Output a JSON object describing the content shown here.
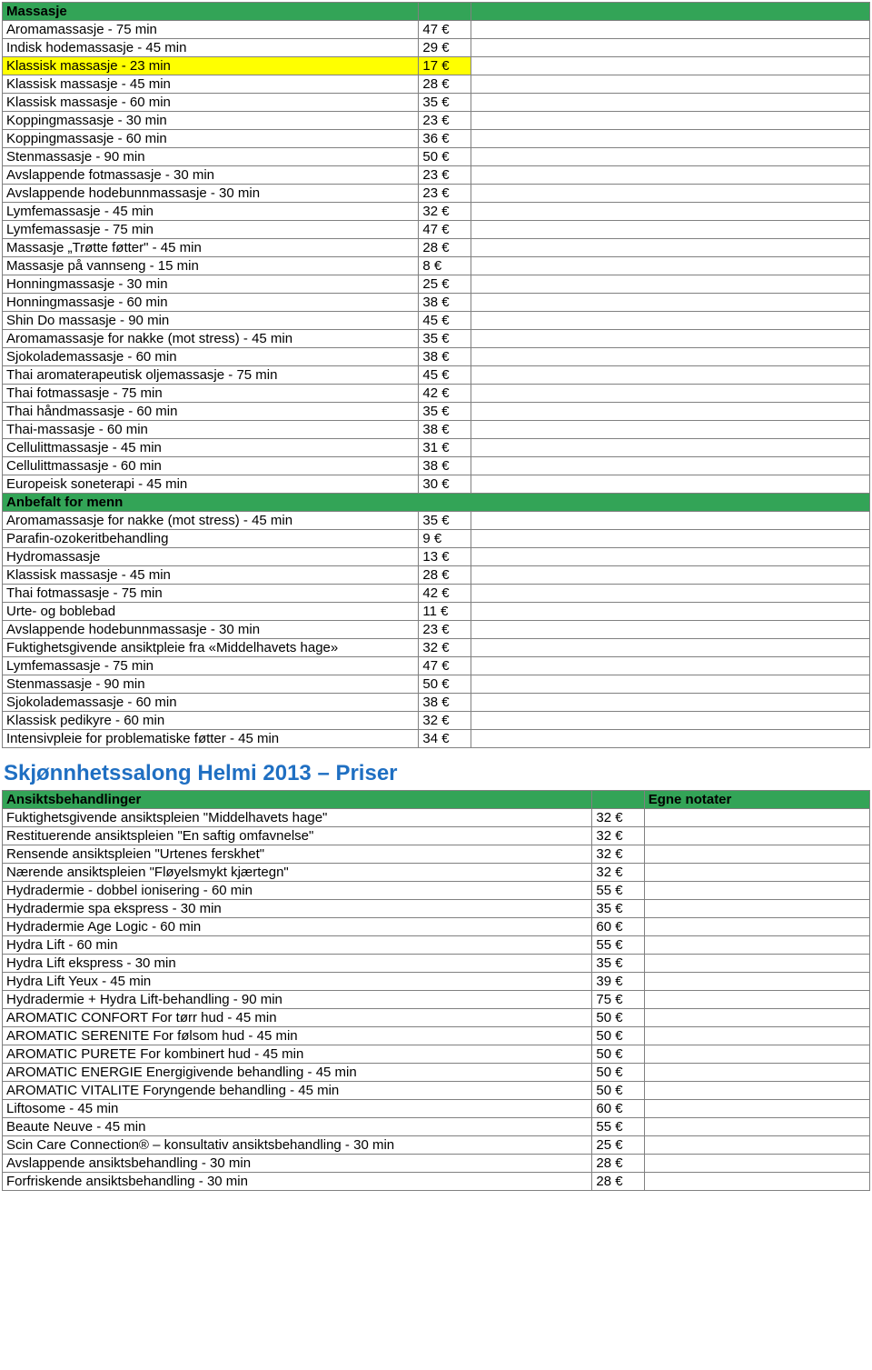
{
  "colors": {
    "headerBg": "#33a457",
    "highlight": "#ffff00",
    "titleColor": "#1f6fc2",
    "borderColor": "#808080"
  },
  "table1": {
    "section1": {
      "header": "Massasje",
      "rows": [
        {
          "name": "Aromamassasje - 75 min",
          "price": "47 €"
        },
        {
          "name": "Indisk hodemassasje - 45 min",
          "price": "29 €"
        },
        {
          "name": "Klassisk massasje - 23 min",
          "price": "17 €",
          "highlight": true
        },
        {
          "name": "Klassisk massasje - 45 min",
          "price": "28 €"
        },
        {
          "name": "Klassisk massasje - 60 min",
          "price": "35 €"
        },
        {
          "name": "Koppingmassasje - 30 min",
          "price": "23 €"
        },
        {
          "name": "Koppingmassasje - 60 min",
          "price": "36 €"
        },
        {
          "name": "Stenmassasje - 90 min",
          "price": "50 €"
        },
        {
          "name": "Avslappende fotmassasje - 30 min",
          "price": "23 €"
        },
        {
          "name": "Avslappende hodebunnmassasje - 30 min",
          "price": "23 €"
        },
        {
          "name": "Lymfemassasje - 45 min",
          "price": "32 €"
        },
        {
          "name": "Lymfemassasje - 75 min",
          "price": "47 €"
        },
        {
          "name": "Massasje „Trøtte føtter\" - 45 min",
          "price": "28 €"
        },
        {
          "name": "Massasje på vannseng - 15 min",
          "price": "8 €"
        },
        {
          "name": "Honningmassasje - 30 min",
          "price": "25 €"
        },
        {
          "name": "Honningmassasje - 60 min",
          "price": "38 €"
        },
        {
          "name": "Shin Do massasje - 90 min",
          "price": "45 €"
        },
        {
          "name": "Aromamassasje for nakke (mot stress) - 45 min",
          "price": "35 €"
        },
        {
          "name": "Sjokolademassasje - 60 min",
          "price": "38 €"
        },
        {
          "name": "Thai aromaterapeutisk oljemassasje - 75 min",
          "price": "45 €"
        },
        {
          "name": "Thai fotmassasje - 75 min",
          "price": "42 €"
        },
        {
          "name": "Thai håndmassasje - 60 min",
          "price": "35 €"
        },
        {
          "name": "Thai-massasje - 60 min",
          "price": "38 €"
        },
        {
          "name": "Cellulittmassasje - 45 min",
          "price": "31 €"
        },
        {
          "name": "Cellulittmassasje - 60 min",
          "price": "38 €"
        },
        {
          "name": "Europeisk soneterapi - 45 min",
          "price": "30 €"
        }
      ]
    },
    "section2": {
      "header": "Anbefalt for menn",
      "rows": [
        {
          "name": "Aromamassasje for nakke (mot stress) - 45 min",
          "price": "35 €"
        },
        {
          "name": "Parafin-ozokeritbehandling",
          "price": "9 €"
        },
        {
          "name": "Hydromassasje",
          "price": "13 €"
        },
        {
          "name": "Klassisk massasje - 45 min",
          "price": "28 €"
        },
        {
          "name": "Thai fotmassasje - 75 min",
          "price": "42 €"
        },
        {
          "name": "Urte- og boblebad",
          "price": "11 €"
        },
        {
          "name": "Avslappende hodebunnmassasje - 30 min",
          "price": "23 €"
        },
        {
          "name": "Fuktighetsgivende ansiktpleie fra «Middelhavets hage»",
          "price": "32 €"
        },
        {
          "name": "Lymfemassasje - 75 min",
          "price": "47 €"
        },
        {
          "name": "Stenmassasje - 90 min",
          "price": "50 €"
        },
        {
          "name": "Sjokolademassasje - 60 min",
          "price": "38 €"
        },
        {
          "name": "Klassisk pedikyre - 60 min",
          "price": "32 €"
        },
        {
          "name": "Intensivpleie for problematiske føtter - 45 min",
          "price": "34 €"
        }
      ]
    }
  },
  "sectionTitle": "Skjønnhetssalong Helmi 2013 – Priser",
  "table2": {
    "headerLeft": "Ansiktsbehandlinger",
    "headerRight": "Egne notater",
    "rows": [
      {
        "name": "Fuktighetsgivende ansiktspleien \"Middelhavets hage\"",
        "price": "32 €"
      },
      {
        "name": "Restituerende ansiktspleien \"En saftig omfavnelse\"",
        "price": "32 €"
      },
      {
        "name": "Rensende ansiktspleien \"Urtenes ferskhet\"",
        "price": "32 €"
      },
      {
        "name": "Nærende ansiktspleien \"Fløyelsmykt kjærtegn\"",
        "price": "32 €"
      },
      {
        "name": "Hydradermie - dobbel ionisering - 60 min",
        "price": "55 €"
      },
      {
        "name": "Hydradermie spa ekspress - 30 min",
        "price": "35 €"
      },
      {
        "name": "Hydradermie Age Logic - 60 min",
        "price": "60 €"
      },
      {
        "name": "Hydra Lift - 60 min",
        "price": "55 €"
      },
      {
        "name": "Hydra Lift ekspress - 30 min",
        "price": "35 €"
      },
      {
        "name": "Hydra Lift Yeux - 45 min",
        "price": "39 €"
      },
      {
        "name": "Hydradermie + Hydra Lift-behandling - 90 min",
        "price": "75 €"
      },
      {
        "name": "AROMATIC CONFORT For tørr hud - 45 min",
        "price": "50 €"
      },
      {
        "name": "AROMATIC SERENITE For følsom hud - 45 min",
        "price": "50 €"
      },
      {
        "name": "AROMATIC PURETE For kombinert hud - 45 min",
        "price": "50 €"
      },
      {
        "name": "AROMATIC ENERGIE Energigivende behandling - 45 min",
        "price": "50 €"
      },
      {
        "name": "AROMATIC VITALITE Foryngende behandling - 45 min",
        "price": "50 €"
      },
      {
        "name": "Liftosome - 45 min",
        "price": "60 €"
      },
      {
        "name": "Beaute Neuve - 45 min",
        "price": "55 €"
      },
      {
        "name": "Scin Care Connection® – konsultativ ansiktsbehandling - 30 min",
        "price": "25 €"
      },
      {
        "name": "Avslappende ansiktsbehandling - 30 min",
        "price": "28 €"
      },
      {
        "name": "Forfriskende ansiktsbehandling - 30 min",
        "price": "28 €"
      }
    ]
  }
}
